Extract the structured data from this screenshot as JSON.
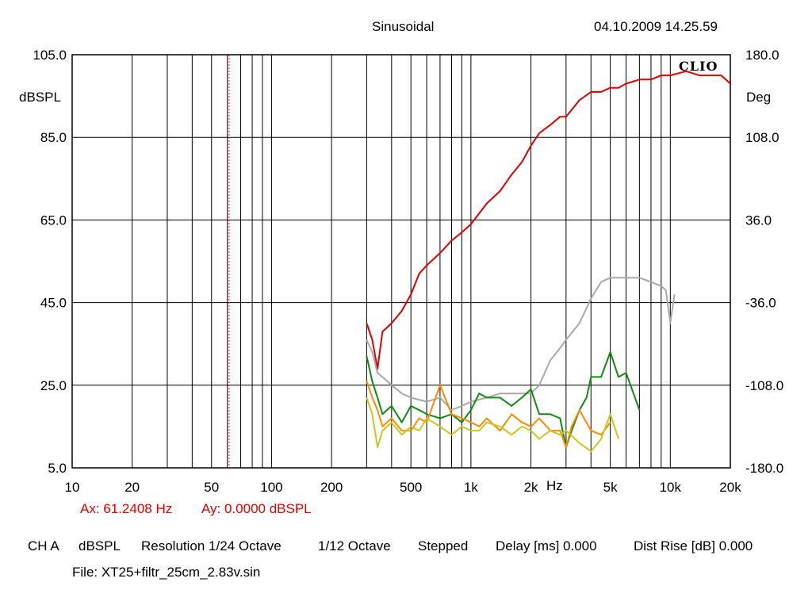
{
  "header": {
    "mode": "Sinusoidal",
    "datetime": "04.10.2009 14.25.59"
  },
  "logo": "CLIO",
  "cursor": {
    "ax": "Ax: 61.2408 Hz",
    "ay": "Ay: 0.0000 dBSPL",
    "marker_hz": 61.2408
  },
  "footer": {
    "channel": "CH A",
    "unit": "dBSPL",
    "resolution": "Resolution 1/24 Octave",
    "smoothing": "1/12 Octave",
    "stepped": "Stepped",
    "delay": "Delay [ms] 0.000",
    "dist_rise": "Dist Rise [dB] 0.000",
    "file": "File: XT25+filtr_25cm_2.83v.sin"
  },
  "colors": {
    "grid": "#000000",
    "marker": "#e00000",
    "fundamental": "#e00000",
    "h2": "#a9a9a9",
    "h3": "#108a10",
    "h4": "#ff8c00",
    "h5": "#c8c820"
  },
  "chart_data": {
    "type": "line",
    "x_scale": "log",
    "xlim": [
      10,
      20000
    ],
    "ylim": [
      5,
      105
    ],
    "y2lim": [
      -180,
      180
    ],
    "grid": true,
    "xlabel": "Hz",
    "ylabel": "dBSPL",
    "y2label": "Deg",
    "x_ticks": [
      {
        "v": 10,
        "label": "10"
      },
      {
        "v": 20,
        "label": "20"
      },
      {
        "v": 50,
        "label": "50"
      },
      {
        "v": 100,
        "label": "100"
      },
      {
        "v": 200,
        "label": "200"
      },
      {
        "v": 500,
        "label": "500"
      },
      {
        "v": 1000,
        "label": "1k"
      },
      {
        "v": 2000,
        "label": "2k"
      },
      {
        "v": 5000,
        "label": "5k"
      },
      {
        "v": 10000,
        "label": "10k"
      },
      {
        "v": 20000,
        "label": "20k"
      }
    ],
    "y_ticks": [
      "105.0",
      "85.0",
      "65.0",
      "45.0",
      "25.0",
      "5.0"
    ],
    "y2_ticks": [
      "180.0",
      "108.0",
      "36.0",
      "-36.0",
      "-108.0",
      "-180.0"
    ],
    "series": [
      {
        "key": "fundamental",
        "x": [
          300,
          320,
          340,
          360,
          380,
          400,
          450,
          500,
          550,
          600,
          700,
          800,
          900,
          1000,
          1200,
          1400,
          1600,
          1800,
          2000,
          2200,
          2500,
          2800,
          3000,
          3500,
          4000,
          4500,
          5000,
          5500,
          6000,
          7000,
          8000,
          9000,
          10000,
          12000,
          14000,
          16000,
          18000,
          20000
        ],
        "y": [
          40,
          36,
          29,
          38,
          39,
          40,
          43,
          47,
          52,
          54,
          57,
          60,
          62,
          64,
          69,
          72,
          76,
          79,
          83,
          86,
          88,
          90,
          90,
          94,
          96,
          96,
          97,
          97,
          98,
          99,
          99,
          100,
          100,
          101,
          100,
          100,
          100,
          98
        ]
      },
      {
        "key": "h2",
        "x": [
          300,
          320,
          340,
          360,
          400,
          450,
          500,
          600,
          700,
          800,
          900,
          1000,
          1200,
          1400,
          1600,
          1800,
          2000,
          2200,
          2500,
          2800,
          3000,
          3500,
          4000,
          4500,
          5000,
          5500,
          6000,
          7000,
          8000,
          9000,
          9500,
          10000,
          10500
        ],
        "y": [
          36,
          33,
          28,
          27,
          25,
          23,
          22,
          21,
          22,
          19,
          20,
          21,
          22,
          23,
          23,
          23,
          23,
          25,
          31,
          34,
          36,
          40,
          46,
          50,
          51,
          51,
          51,
          51,
          50,
          49,
          48,
          40,
          47
        ]
      },
      {
        "key": "h3",
        "x": [
          300,
          320,
          340,
          360,
          400,
          450,
          500,
          550,
          600,
          700,
          800,
          900,
          1000,
          1100,
          1200,
          1400,
          1600,
          1800,
          2000,
          2200,
          2500,
          2800,
          3000,
          3200,
          3500,
          3800,
          4000,
          4500,
          5000,
          5500,
          6000,
          7000
        ],
        "y": [
          32,
          26,
          22,
          18,
          20,
          16,
          20,
          19,
          18,
          17,
          18,
          16,
          19,
          23,
          22,
          22,
          20,
          22,
          24,
          18,
          18,
          17,
          10,
          14,
          19,
          22,
          27,
          27,
          33,
          27,
          28,
          19
        ]
      },
      {
        "key": "h4",
        "x": [
          300,
          320,
          340,
          360,
          400,
          450,
          500,
          550,
          600,
          700,
          800,
          900,
          1000,
          1100,
          1200,
          1400,
          1600,
          1800,
          2000,
          2200,
          2500,
          2800,
          3000,
          3200,
          3500,
          4000,
          4500,
          5000
        ],
        "y": [
          26,
          22,
          19,
          15,
          17,
          14,
          14,
          17,
          16,
          25,
          18,
          17,
          16,
          15,
          17,
          14,
          18,
          16,
          15,
          17,
          14,
          14,
          10,
          15,
          19,
          14,
          13,
          16
        ]
      },
      {
        "key": "h5",
        "x": [
          300,
          320,
          340,
          360,
          400,
          450,
          500,
          550,
          600,
          700,
          800,
          900,
          1000,
          1100,
          1200,
          1400,
          1600,
          1800,
          2000,
          2200,
          2500,
          2800,
          3000,
          3500,
          4000,
          4500,
          5000,
          5500
        ],
        "y": [
          22,
          18,
          10,
          14,
          16,
          13,
          15,
          14,
          17,
          15,
          13,
          15,
          14,
          14,
          16,
          15,
          13,
          15,
          14,
          12,
          14,
          13,
          14,
          11,
          9,
          12,
          18,
          12
        ]
      }
    ]
  }
}
